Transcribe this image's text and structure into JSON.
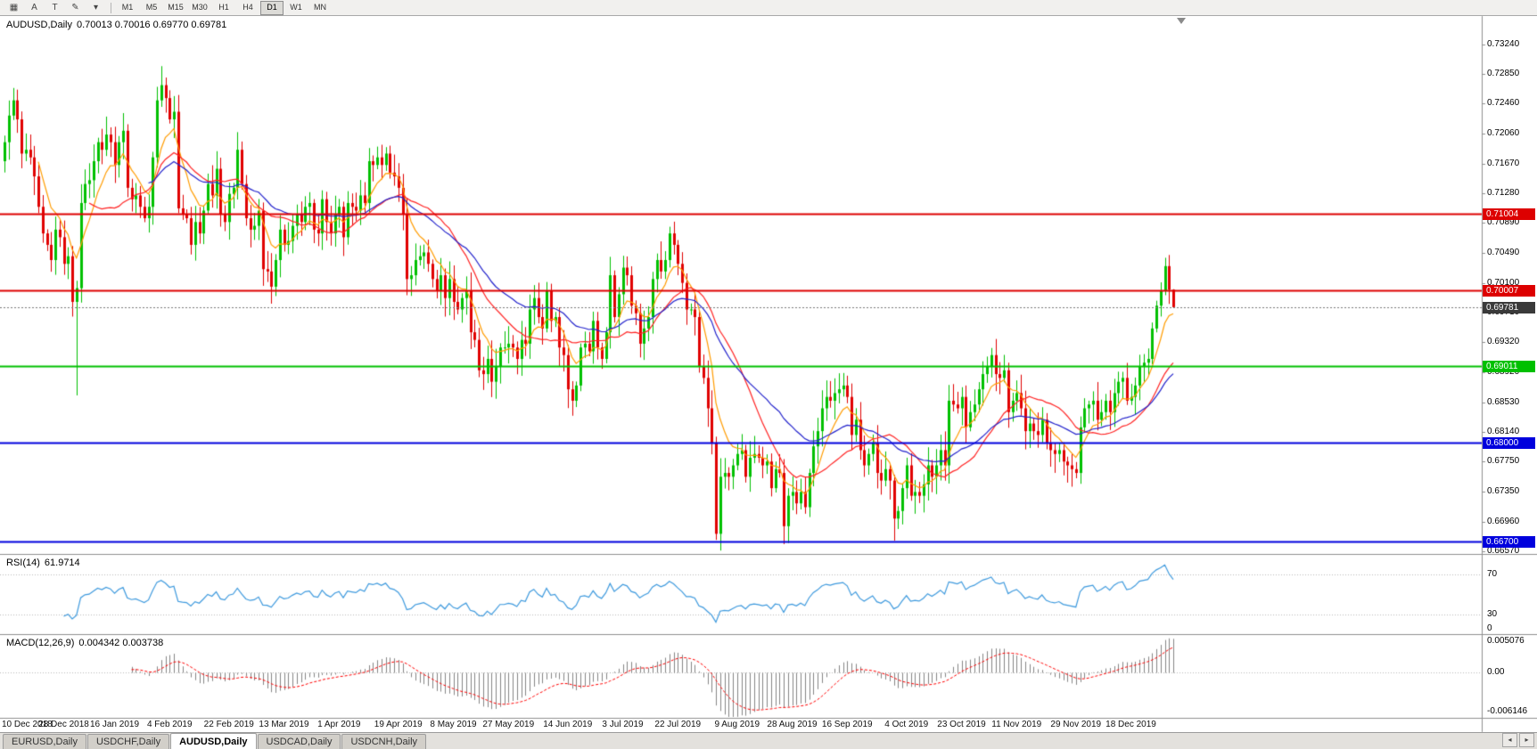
{
  "toolbar": {
    "tools": [
      {
        "name": "chart-type-icon",
        "glyph": "▦"
      },
      {
        "name": "arrow-tool-icon",
        "glyph": "A"
      },
      {
        "name": "text-tool-icon",
        "glyph": "T"
      },
      {
        "name": "color-tool-icon",
        "glyph": "✎"
      },
      {
        "name": "color-dropdown-icon",
        "glyph": "▾"
      }
    ],
    "timeframes": [
      {
        "label": "M1",
        "active": false
      },
      {
        "label": "M5",
        "active": false
      },
      {
        "label": "M15",
        "active": false
      },
      {
        "label": "M30",
        "active": false
      },
      {
        "label": "H1",
        "active": false
      },
      {
        "label": "H4",
        "active": false
      },
      {
        "label": "D1",
        "active": true
      },
      {
        "label": "W1",
        "active": false
      },
      {
        "label": "MN",
        "active": false
      }
    ]
  },
  "chart": {
    "title_symbol": "AUDUSD,Daily",
    "title_ohlc": "0.70013 0.70016 0.69770 0.69781"
  },
  "rsi_panel": {
    "title": "RSI(14)",
    "value": "61.9714",
    "axis_labels": [
      {
        "text": "70",
        "value": 70
      },
      {
        "text": "30",
        "value": 30
      },
      {
        "text": "0",
        "value": 0
      }
    ]
  },
  "macd_panel": {
    "title": "MACD(12,26,9)",
    "values": "0.004342 0.003738",
    "axis_top": "0.005076",
    "axis_zero": "0.00",
    "axis_bottom": "-0.006146"
  },
  "tabs": [
    {
      "label": "EURUSD,Daily",
      "active": false
    },
    {
      "label": "USDCHF,Daily",
      "active": false
    },
    {
      "label": "AUDUSD,Daily",
      "active": true
    },
    {
      "label": "USDCAD,Daily",
      "active": false
    },
    {
      "label": "USDCNH,Daily",
      "active": false
    }
  ],
  "tab_bar": {
    "arrows": [
      {
        "name": "tab-scroll-left-button",
        "glyph": "◂"
      },
      {
        "name": "tab-scroll-right-button",
        "glyph": "▸"
      }
    ]
  },
  "chart_data": {
    "type": "candlestick",
    "symbol": "AUDUSD",
    "period": "Daily",
    "last_bar": {
      "open": 0.70013,
      "high": 0.70016,
      "low": 0.6977,
      "close": 0.69781
    },
    "first_open": 0.717,
    "closes": [
      0.7195,
      0.723,
      0.725,
      0.7225,
      0.718,
      0.7185,
      0.7175,
      0.715,
      0.711,
      0.7075,
      0.706,
      0.704,
      0.708,
      0.707,
      0.7035,
      0.7045,
      0.6985,
      0.7003,
      0.7115,
      0.714,
      0.7145,
      0.717,
      0.7195,
      0.7185,
      0.7205,
      0.7195,
      0.7165,
      0.7195,
      0.721,
      0.7135,
      0.712,
      0.7125,
      0.711,
      0.7095,
      0.711,
      0.7175,
      0.725,
      0.727,
      0.7253,
      0.7225,
      0.7235,
      0.7108,
      0.71,
      0.7095,
      0.706,
      0.709,
      0.7075,
      0.7105,
      0.714,
      0.7125,
      0.716,
      0.71,
      0.709,
      0.7127,
      0.7135,
      0.7185,
      0.714,
      0.7095,
      0.708,
      0.7085,
      0.7105,
      0.7028,
      0.7025,
      0.7005,
      0.704,
      0.708,
      0.706,
      0.7065,
      0.7085,
      0.71,
      0.709,
      0.711,
      0.7115,
      0.708,
      0.7075,
      0.712,
      0.709,
      0.7075,
      0.71,
      0.711,
      0.707,
      0.7115,
      0.711,
      0.7105,
      0.7125,
      0.7115,
      0.717,
      0.7165,
      0.7175,
      0.7165,
      0.718,
      0.7155,
      0.715,
      0.7135,
      0.71,
      0.7015,
      0.702,
      0.704,
      0.7045,
      0.705,
      0.7035,
      0.7015,
      0.7,
      0.702,
      0.699,
      0.7015,
      0.6985,
      0.6975,
      0.699,
      0.7,
      0.6945,
      0.6935,
      0.6895,
      0.689,
      0.691,
      0.688,
      0.69,
      0.6925,
      0.6925,
      0.693,
      0.6925,
      0.691,
      0.6935,
      0.693,
      0.6975,
      0.699,
      0.6965,
      0.695,
      0.7,
      0.696,
      0.6965,
      0.6925,
      0.6915,
      0.687,
      0.6855,
      0.6875,
      0.6925,
      0.693,
      0.692,
      0.696,
      0.6925,
      0.691,
      0.6945,
      0.702,
      0.6965,
      0.6995,
      0.703,
      0.702,
      0.698,
      0.697,
      0.693,
      0.695,
      0.6965,
      0.7015,
      0.704,
      0.7025,
      0.704,
      0.7075,
      0.706,
      0.7035,
      0.701,
      0.6975,
      0.6975,
      0.6965,
      0.69,
      0.6885,
      0.6845,
      0.68,
      0.668,
      0.6755,
      0.676,
      0.6755,
      0.677,
      0.6785,
      0.679,
      0.6755,
      0.678,
      0.6785,
      0.678,
      0.677,
      0.6775,
      0.674,
      0.6765,
      0.676,
      0.669,
      0.673,
      0.6735,
      0.672,
      0.6735,
      0.6715,
      0.676,
      0.6795,
      0.6815,
      0.6845,
      0.686,
      0.6855,
      0.6865,
      0.687,
      0.6875,
      0.686,
      0.681,
      0.683,
      0.679,
      0.677,
      0.6785,
      0.68,
      0.676,
      0.675,
      0.6765,
      0.675,
      0.67,
      0.671,
      0.674,
      0.677,
      0.673,
      0.6735,
      0.673,
      0.6745,
      0.677,
      0.6755,
      0.677,
      0.679,
      0.677,
      0.6855,
      0.685,
      0.6845,
      0.686,
      0.682,
      0.684,
      0.685,
      0.687,
      0.689,
      0.69,
      0.6915,
      0.689,
      0.6885,
      0.6895,
      0.684,
      0.6855,
      0.6865,
      0.6845,
      0.6815,
      0.6825,
      0.6815,
      0.681,
      0.683,
      0.68,
      0.679,
      0.6785,
      0.679,
      0.6775,
      0.677,
      0.6765,
      0.676,
      0.682,
      0.6845,
      0.685,
      0.6855,
      0.683,
      0.684,
      0.6855,
      0.684,
      0.6865,
      0.688,
      0.6885,
      0.6855,
      0.686,
      0.6875,
      0.69,
      0.6905,
      0.691,
      0.695,
      0.698,
      0.7,
      0.7032,
      0.7001,
      0.69781
    ],
    "wick_overrides": {
      "17": {
        "low": 0.6862
      },
      "37": {
        "high": 0.7295
      },
      "168": {
        "low": 0.6672
      },
      "210": {
        "low": 0.6671
      },
      "274": {
        "high": 0.7043
      },
      "276": {
        "high": 0.70016,
        "low": 0.6977
      }
    },
    "y_axis_ticks": [
      "0.73240",
      "0.72850",
      "0.72460",
      "0.72060",
      "0.71670",
      "0.71280",
      "0.70890",
      "0.70490",
      "0.70100",
      "0.69710",
      "0.69320",
      "0.68920",
      "0.68530",
      "0.68140",
      "0.67750",
      "0.67350",
      "0.66960",
      "0.66570"
    ],
    "x_labels": [
      {
        "text": "10 Dec 2018",
        "idx": 0
      },
      {
        "text": "28 Dec 2018",
        "idx": 14
      },
      {
        "text": "16 Jan 2019",
        "idx": 26
      },
      {
        "text": "4 Feb 2019",
        "idx": 39
      },
      {
        "text": "22 Feb 2019",
        "idx": 53
      },
      {
        "text": "13 Mar 2019",
        "idx": 66
      },
      {
        "text": "1 Apr 2019",
        "idx": 79
      },
      {
        "text": "19 Apr 2019",
        "idx": 93
      },
      {
        "text": "8 May 2019",
        "idx": 106
      },
      {
        "text": "27 May 2019",
        "idx": 119
      },
      {
        "text": "14 Jun 2019",
        "idx": 133
      },
      {
        "text": "3 Jul 2019",
        "idx": 146
      },
      {
        "text": "22 Jul 2019",
        "idx": 159
      },
      {
        "text": "9 Aug 2019",
        "idx": 173
      },
      {
        "text": "28 Aug 2019",
        "idx": 186
      },
      {
        "text": "16 Sep 2019",
        "idx": 199
      },
      {
        "text": "4 Oct 2019",
        "idx": 213
      },
      {
        "text": "23 Oct 2019",
        "idx": 226
      },
      {
        "text": "11 Nov 2019",
        "idx": 239
      },
      {
        "text": "29 Nov 2019",
        "idx": 253
      },
      {
        "text": "18 Dec 2019",
        "idx": 266
      }
    ],
    "horizontal_levels": [
      {
        "price": 0.71004,
        "label": "0.71004",
        "color": "#dd0000",
        "width": 2
      },
      {
        "price": 0.70007,
        "label": "0.70007",
        "color": "#dd0000",
        "width": 2
      },
      {
        "price": 0.69011,
        "label": "0.69011",
        "color": "#00c000",
        "width": 2
      },
      {
        "price": 0.68,
        "label": "0.68000",
        "color": "#0000dd",
        "width": 2
      },
      {
        "price": 0.667,
        "label": "0.66700",
        "color": "#0000dd",
        "width": 2
      }
    ],
    "bid": {
      "price": 0.69781,
      "label": "0.69781",
      "bg": "#3a3a3a"
    },
    "indicators": {
      "moving_averages": [
        {
          "period": 8,
          "method": "ema",
          "color": "#ff9c00"
        },
        {
          "period": 20,
          "method": "sma",
          "color": "#ff2222"
        },
        {
          "period": 34,
          "method": "ema",
          "color": "#2222cc"
        }
      ],
      "rsi": {
        "period": 14,
        "current": 61.9714,
        "levels": [
          70,
          30
        ],
        "display_max": 90,
        "display_min": 10,
        "color": "#3e9ade"
      },
      "macd": {
        "fast": 12,
        "slow": 26,
        "signal": 9,
        "current_main": 0.004342,
        "current_signal": 0.003738,
        "scale_max": 0.005076,
        "scale_min": -0.006146,
        "histogram_color": "#858585",
        "signal_color": "#ff0000"
      }
    },
    "colors": {
      "bull": "#00c000",
      "bear": "#e00000",
      "axis_line": "#909090",
      "grid_dotted": "#bbbbbb"
    }
  }
}
